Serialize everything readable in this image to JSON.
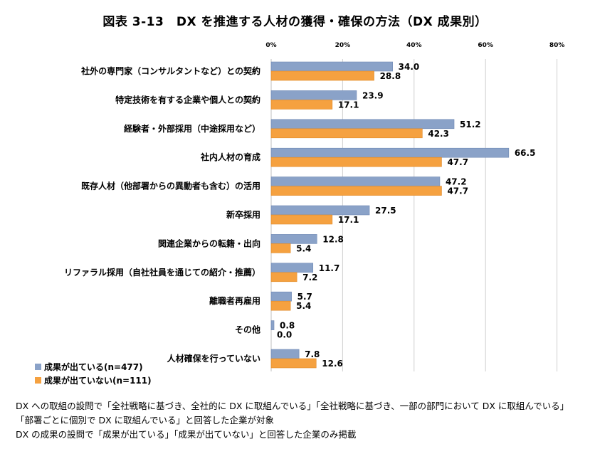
{
  "chart_data": {
    "type": "bar",
    "orientation": "horizontal",
    "title": "図表 3-13　DX を推進する人材の獲得・確保の方法（DX 成果別）",
    "categories": [
      "社外の専門家（コンサルタントなど）との契約",
      "特定技術を有する企業や個人との契約",
      "経験者・外部採用（中途採用など）",
      "社内人材の育成",
      "既存人材（他部署からの異動者も含む）の活用",
      "新卒採用",
      "関連企業からの転籍・出向",
      "リファラル採用（自社社員を通じての紹介・推薦）",
      "離職者再雇用",
      "その他",
      "人材確保を行っていない"
    ],
    "series": [
      {
        "name": "成果が出ている(n=477)",
        "values": [
          34.0,
          23.9,
          51.2,
          66.5,
          47.2,
          27.5,
          12.8,
          11.7,
          5.7,
          0.8,
          7.8
        ],
        "labels": [
          "34.0",
          "23.9",
          "51.2",
          "66.5",
          "47.2",
          "27.5",
          "12.8",
          "11.7",
          "5.7",
          "0.8",
          "7.8"
        ],
        "color": "#8aa2c8"
      },
      {
        "name": "成果が出ていない(n=111)",
        "values": [
          28.8,
          17.1,
          42.3,
          47.7,
          47.7,
          17.1,
          5.4,
          7.2,
          5.4,
          0.0,
          12.6
        ],
        "labels": [
          "28.8",
          "17.1",
          "42.3",
          "47.7",
          "47.7",
          "17.1",
          "5.4",
          "7.2",
          "5.4",
          "0.0",
          "12.6"
        ],
        "color": "#f5a140"
      }
    ],
    "xlim": [
      0,
      80
    ],
    "xticks": [
      "0%",
      "20%",
      "40%",
      "60%",
      "80%"
    ],
    "grid": true,
    "legend_position": "bottom-left"
  },
  "notes": [
    "DX への取組の設問で「全社戦略に基づき、全社的に DX に取組んでいる」「全社戦略に基づき、一部の部門において DX に取組んでいる」",
    "「部署ごとに個別で DX に取組んでいる」と回答した企業が対象",
    "DX の成果の設問で「成果が出ている」「成果が出ていない」と回答した企業のみ掲載"
  ]
}
